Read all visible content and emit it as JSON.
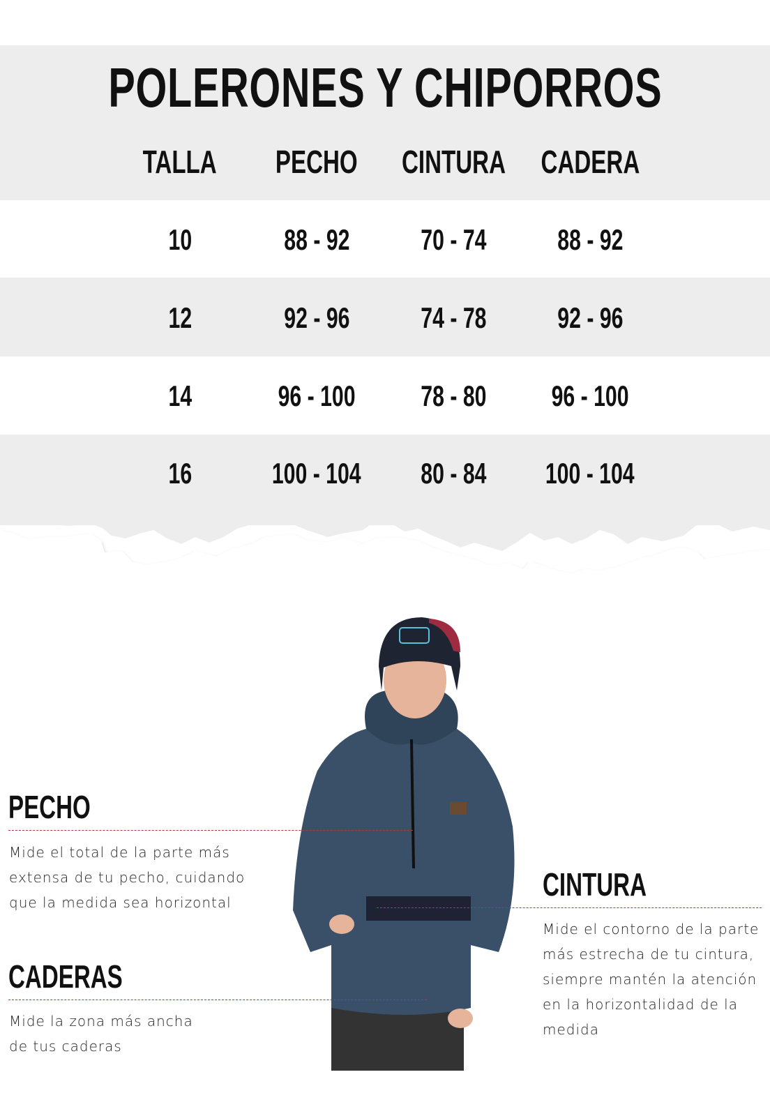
{
  "title": "POLERONES Y CHIPORROS",
  "table": {
    "headers": [
      "TALLA",
      "PECHO",
      "CINTURA",
      "CADERA"
    ],
    "rows": [
      [
        "10",
        "88 - 92",
        "70 - 74",
        "88 - 92"
      ],
      [
        "12",
        "92 - 96",
        "74 - 78",
        "92 - 96"
      ],
      [
        "14",
        "96 - 100",
        "78 - 80",
        "96 - 100"
      ],
      [
        "16",
        "100 - 104",
        "80 - 84",
        "100 - 104"
      ]
    ]
  },
  "sections": {
    "pecho": {
      "heading": "PECHO",
      "lines": [
        "Mide el total de la parte más",
        "extensa de tu pecho, cuidando",
        "que la medida sea horizontal"
      ]
    },
    "caderas": {
      "heading": "CADERAS",
      "lines": [
        "Mide la zona más ancha",
        "de tus caderas"
      ]
    },
    "cintura": {
      "heading": "CINTURA",
      "lines": [
        "Mide el contorno de la parte",
        "más estrecha de tu cintura,",
        "siempre mantén la atención",
        "en  la horizontalidad de la",
        "medida"
      ]
    }
  },
  "colors": {
    "band": "#ededed",
    "dashed_line": "#b23a3a",
    "fleece": "#3a5068"
  }
}
